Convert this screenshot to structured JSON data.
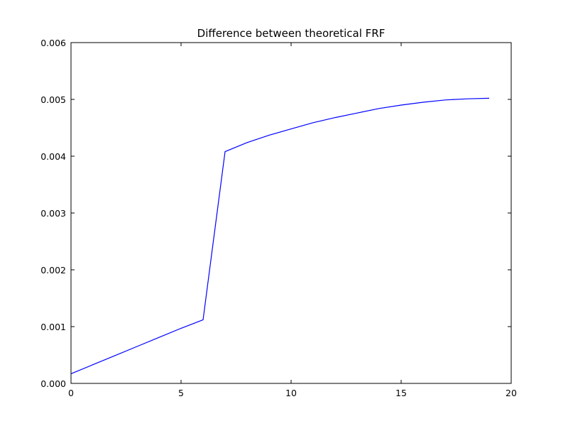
{
  "chart_data": {
    "type": "line",
    "title": "Difference between theoretical FRF",
    "xlabel": "",
    "ylabel": "",
    "xlim": [
      0,
      20
    ],
    "ylim": [
      0,
      0.006
    ],
    "x_ticks": [
      "0",
      "5",
      "10",
      "15",
      "20"
    ],
    "y_ticks": [
      "0.000",
      "0.001",
      "0.002",
      "0.003",
      "0.004",
      "0.005",
      "0.006"
    ],
    "grid": false,
    "series": [
      {
        "color": "#0000ff",
        "x": [
          0,
          1,
          2,
          3,
          4,
          5,
          6,
          7,
          8,
          9,
          10,
          11,
          12,
          13,
          14,
          15,
          16,
          17,
          18,
          19
        ],
        "y": [
          0.00017,
          0.00033,
          0.00049,
          0.00065,
          0.00081,
          0.00097,
          0.00112,
          0.00408,
          0.00424,
          0.00437,
          0.00448,
          0.00459,
          0.00468,
          0.00476,
          0.00484,
          0.0049,
          0.00495,
          0.00499,
          0.00501,
          0.00502
        ]
      }
    ]
  }
}
